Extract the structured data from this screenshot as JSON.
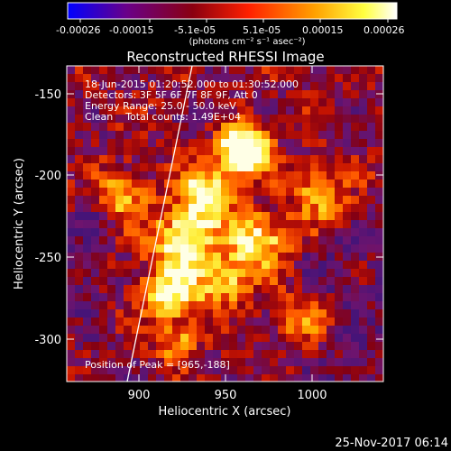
{
  "colorbar": {
    "tick_labels": [
      "-0.00026",
      "-0.00015",
      "-5.1e-05",
      "5.1e-05",
      "0.00015",
      "0.00026"
    ],
    "unit_label": "(photons cm⁻² s⁻¹ asec⁻²)",
    "colormap": [
      "#0000ff",
      "#ff0000",
      "#ffff00",
      "#ffffff"
    ]
  },
  "image": {
    "title": "Reconstructed RHESSI Image",
    "info_lines": [
      "18-Jun-2015 01:20:52.000 to 01:30:52.000",
      "Detectors: 3F 5F 6F 7F 8F 9F, Att 0",
      "Energy Range: 25.0 - 50.0 keV",
      "Clean    Total counts: 1.49E+04"
    ],
    "peak_label": "Position of Peak = [965,-188]"
  },
  "axes": {
    "xlabel": "Heliocentric X (arcsec)",
    "ylabel": "Heliocentric Y (arcsec)",
    "xticks": [
      "900",
      "950",
      "1000"
    ],
    "yticks": [
      "-150",
      "-200",
      "-250",
      "-300"
    ]
  },
  "timestamp": "25-Nov-2017 06:14"
}
